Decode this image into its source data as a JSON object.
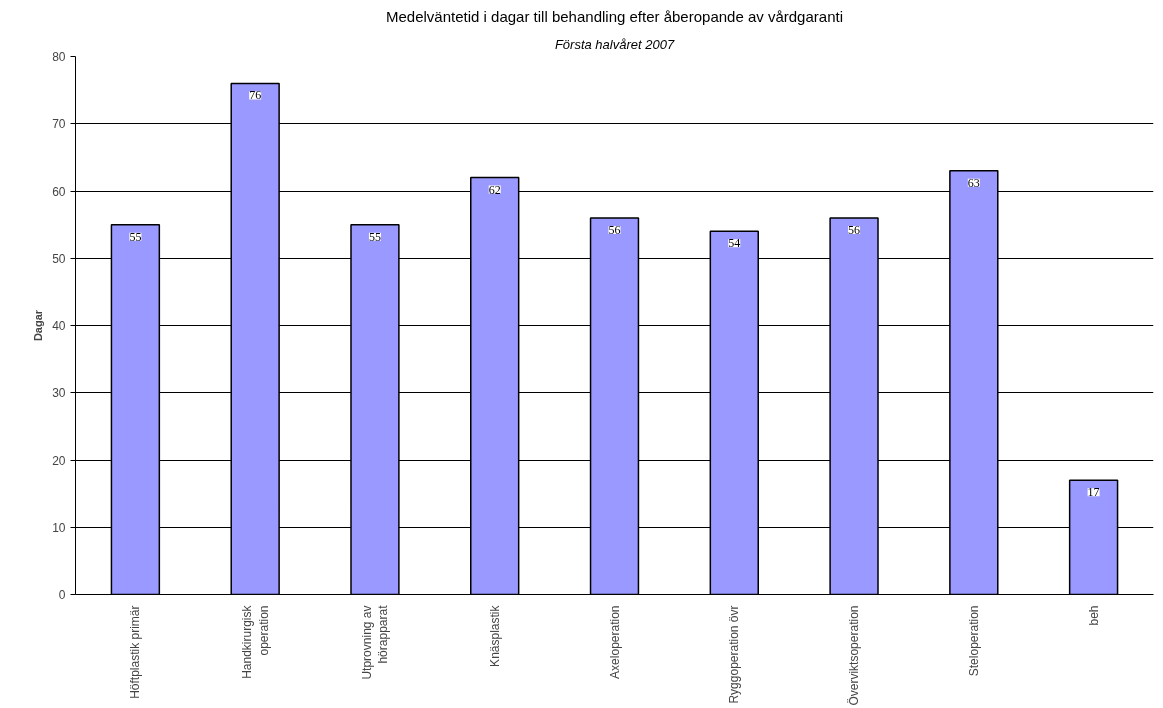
{
  "chart_data": {
    "type": "bar",
    "title": "Medelväntetid i dagar till behandling efter åberopande av vårdgaranti",
    "subtitle": "Första halvåret 2007",
    "ylabel": "Dagar",
    "categories": [
      "Höftplastik primär",
      "Handkirurgisk\noperation",
      "Utprovning av\nhörapparat",
      "Knäsplastik",
      "Axeloperation",
      "Ryggoperation övr",
      "Överviktsoperation",
      "Steloperation",
      "beh"
    ],
    "values": [
      55,
      76,
      55,
      62,
      56,
      54,
      56,
      63,
      17
    ],
    "color": "#9999ff",
    "ylim": [
      0,
      80
    ],
    "yticks": [
      0,
      10,
      20,
      30,
      40,
      50,
      60,
      70,
      80
    ],
    "grid": "y",
    "data_labels": true
  }
}
